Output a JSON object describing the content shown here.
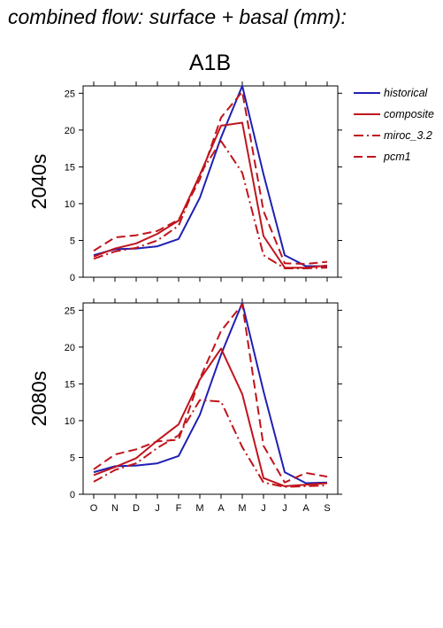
{
  "page": {
    "title": "combined flow: surface + basal (mm):",
    "subtitle": "A1B"
  },
  "chart_data": [
    {
      "type": "line",
      "title": "A1B",
      "ylabel": "2040s",
      "xlabel": "",
      "categories": [
        "O",
        "N",
        "D",
        "J",
        "F",
        "M",
        "A",
        "M",
        "J",
        "J",
        "A",
        "S"
      ],
      "ylim": [
        0,
        26
      ],
      "yticks": [
        0,
        5,
        10,
        15,
        20,
        25
      ],
      "legend_position": "right",
      "series": [
        {
          "name": "historical",
          "color": "#1f1fb4",
          "dash": "solid",
          "values": [
            3.0,
            3.8,
            3.9,
            4.2,
            5.2,
            10.8,
            19.0,
            26.0,
            14.0,
            3.0,
            1.5,
            1.5
          ]
        },
        {
          "name": "composite",
          "color": "#c0141c",
          "dash": "solid",
          "values": [
            2.8,
            3.9,
            4.6,
            5.9,
            7.7,
            13.9,
            20.6,
            21.0,
            5.6,
            1.3,
            1.3,
            1.6
          ]
        },
        {
          "name": "miroc_3.2",
          "color": "#c0141c",
          "dash": "dashdot",
          "values": [
            2.5,
            3.5,
            4.0,
            5.0,
            7.0,
            14.0,
            18.5,
            14.2,
            3.0,
            1.2,
            1.2,
            1.3
          ]
        },
        {
          "name": "pcm1",
          "color": "#c0141c",
          "dash": "dash",
          "values": [
            3.6,
            5.4,
            5.7,
            6.3,
            7.8,
            13.3,
            21.7,
            25.2,
            9.0,
            1.9,
            1.8,
            2.1
          ]
        }
      ]
    },
    {
      "type": "line",
      "title": "",
      "ylabel": "2080s",
      "xlabel": "",
      "categories": [
        "O",
        "N",
        "D",
        "J",
        "F",
        "M",
        "A",
        "M",
        "J",
        "J",
        "A",
        "S"
      ],
      "ylim": [
        0,
        26
      ],
      "yticks": [
        0,
        5,
        10,
        15,
        20,
        25
      ],
      "series": [
        {
          "name": "historical",
          "color": "#1f1fb4",
          "dash": "solid",
          "values": [
            3.0,
            3.8,
            3.9,
            4.2,
            5.2,
            10.8,
            19.0,
            26.0,
            14.0,
            3.0,
            1.5,
            1.6
          ]
        },
        {
          "name": "composite",
          "color": "#c0141c",
          "dash": "solid",
          "values": [
            2.6,
            3.7,
            4.9,
            7.3,
            9.5,
            15.6,
            19.8,
            13.6,
            2.2,
            1.1,
            1.3,
            1.5
          ]
        },
        {
          "name": "miroc_3.2",
          "color": "#c0141c",
          "dash": "dashdot",
          "values": [
            1.7,
            3.3,
            4.2,
            6.3,
            8.0,
            12.8,
            12.6,
            6.4,
            1.6,
            1.0,
            1.1,
            1.2
          ]
        },
        {
          "name": "pcm1",
          "color": "#c0141c",
          "dash": "dash",
          "values": [
            3.4,
            5.4,
            6.1,
            7.2,
            7.4,
            15.7,
            22.2,
            25.8,
            6.6,
            1.6,
            2.9,
            2.4
          ]
        }
      ]
    }
  ]
}
